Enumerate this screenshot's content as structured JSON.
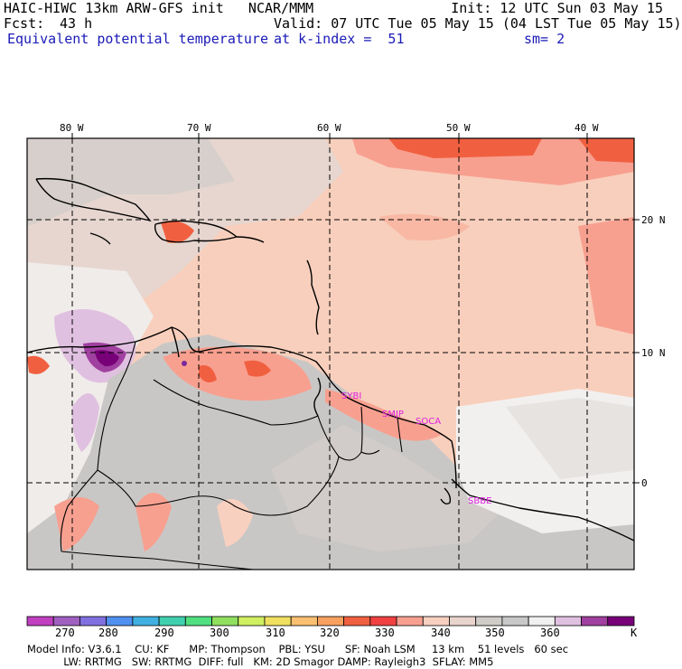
{
  "header": {
    "line1_left": "HAIC-HIWC 13km ARW-GFS init   NCAR/MMM",
    "line1_right": "Init: 12 UTC Sun 03 May 15",
    "fcst_label": "Fcst:",
    "fcst_value": "43 h",
    "valid": "Valid: 07 UTC Tue 05 May 15 (04 LST Tue 05 May 15)",
    "field_name": "Equivalent potential temperature",
    "level": "at k-index =  51",
    "smoothing": "sm= 2"
  },
  "map": {
    "lon_labels": [
      "80 W",
      "70 W",
      "60 W",
      "50 W",
      "40 W"
    ],
    "lat_labels": [
      "20 N",
      "10 N",
      "0"
    ],
    "stations": [
      "SYBI",
      "SMJP",
      "SOCA",
      "SBBE"
    ]
  },
  "colorbar": {
    "colors": [
      "#c040c0",
      "#a060c0",
      "#8070e0",
      "#5090f0",
      "#40b0e0",
      "#40d0b0",
      "#50e080",
      "#90e060",
      "#d0f060",
      "#f0e060",
      "#f8c070",
      "#f8a060",
      "#f06040",
      "#f04040",
      "#f8a090",
      "#f8d0c0",
      "#e8d4cc",
      "#d0ccc8",
      "#c8c8c8",
      "#f0f0f0",
      "#e0c0e0",
      "#a040a0",
      "#780078"
    ],
    "labels": [
      "270",
      "280",
      "290",
      "300",
      "310",
      "320",
      "330",
      "340",
      "350",
      "360"
    ],
    "unit": "K"
  },
  "model_info": {
    "line1": "Model Info: V3.6.1    CU: KF      MP: Thompson    PBL: YSU      SF: Noah LSM     13 km    51 levels   60 sec",
    "line2": "           LW: RRTMG   SW: RRTMG  DIFF: full   KM: 2D Smagor DAMP: Rayleigh3  SFLAY: MM5"
  }
}
